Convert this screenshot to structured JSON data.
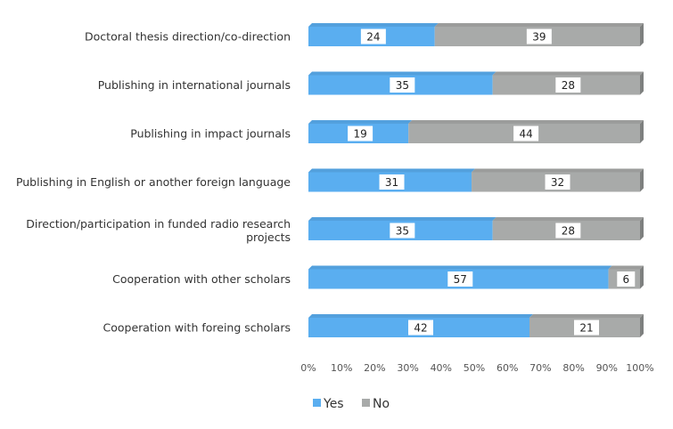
{
  "chart_data": {
    "type": "bar",
    "orientation": "horizontal",
    "stacked": "percent",
    "title": "",
    "xlabel": "",
    "ylabel": "",
    "xlim": [
      0,
      100
    ],
    "x_ticks": [
      "0%",
      "10%",
      "20%",
      "30%",
      "40%",
      "50%",
      "60%",
      "70%",
      "80%",
      "90%",
      "100%"
    ],
    "grid": false,
    "legend_position": "bottom",
    "categories": [
      "Doctoral thesis direction/co-direction",
      "Publishing in international journals",
      "Publishing in impact journals",
      "Publishing in English or another foreign language",
      "Direction/participation in funded radio research projects",
      "Cooperation with other scholars",
      "Cooperation with foreing scholars"
    ],
    "series": [
      {
        "name": "Yes",
        "color": "#5aaef0",
        "values": [
          24,
          35,
          19,
          31,
          35,
          57,
          42
        ]
      },
      {
        "name": "No",
        "color": "#a8aaa9",
        "values": [
          39,
          28,
          44,
          32,
          28,
          6,
          21
        ]
      }
    ]
  }
}
